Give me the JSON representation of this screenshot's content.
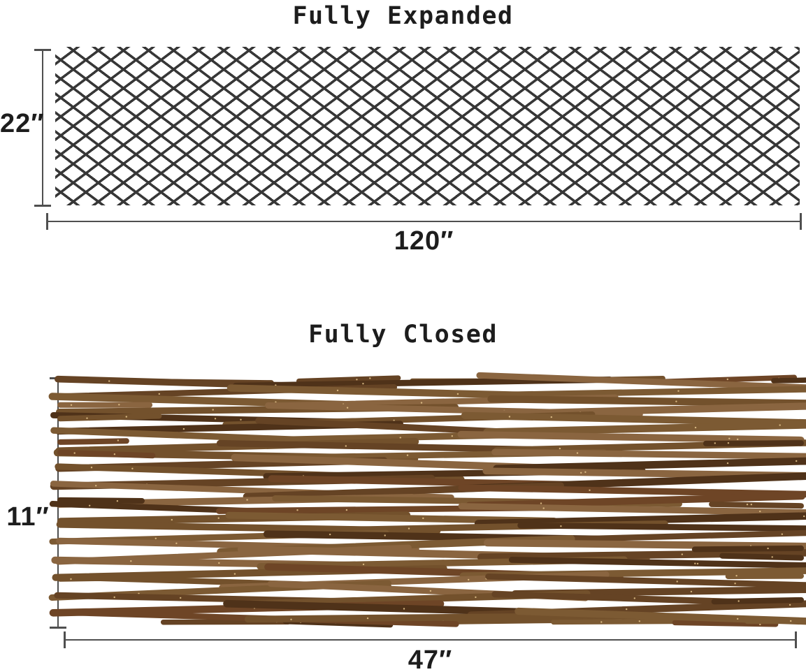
{
  "colors": {
    "background": "#ffffff",
    "text": "#1d1d1d",
    "dimension-line": "#4f4f4f",
    "lattice-line": "#373737"
  },
  "expanded": {
    "title": "Fully Expanded",
    "height_label": "22″",
    "width_label": "120″"
  },
  "closed": {
    "title": "Fully Closed",
    "height_label": "11″",
    "width_label": "47″",
    "stick_colors": [
      "#8a6540",
      "#73512c",
      "#654324",
      "#4f3219",
      "#6e4526",
      "#7c5a33"
    ],
    "speckle_color": "#e6c78e"
  }
}
